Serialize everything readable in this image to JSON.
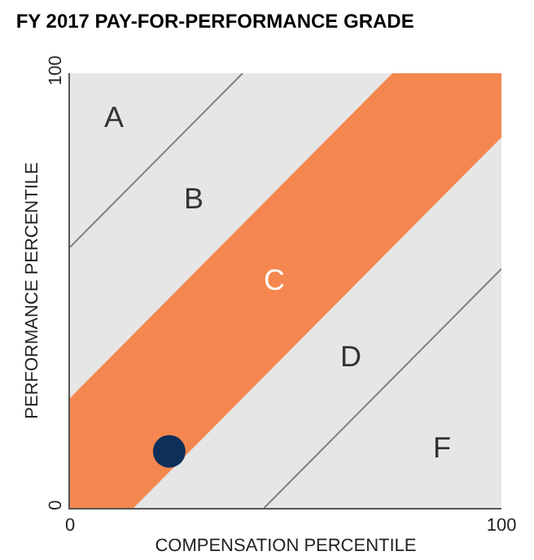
{
  "chart_data": {
    "type": "line",
    "title": "FY 2017 PAY-FOR-PERFORMANCE GRADE",
    "xlabel": "COMPENSATION PERCENTILE",
    "ylabel": "PERFORMANCE PERCENTILE",
    "xlim": [
      0,
      100
    ],
    "ylim": [
      0,
      100
    ],
    "xticks": [
      0,
      100
    ],
    "yticks": [
      0,
      100
    ],
    "series": [
      {
        "type": "area",
        "color": "#f4874f",
        "x": [
          0,
          75,
          100
        ],
        "values": [
          25,
          100,
          100
        ]
      },
      {
        "type": "area",
        "color": "#e6e6e6",
        "x": [
          15,
          100
        ],
        "values": [
          0,
          85
        ]
      },
      {
        "color": "#7f7f7f",
        "x": [
          0,
          40
        ],
        "values": [
          60,
          100
        ]
      },
      {
        "color": "#7f7f7f",
        "x": [
          45,
          100
        ],
        "values": [
          0,
          55
        ]
      },
      {
        "type": "scatter",
        "color": "#0d2f5a",
        "marker": "circle",
        "x": [
          23
        ],
        "values": [
          13
        ]
      }
    ],
    "annotations": [
      "A",
      "B",
      "C",
      "D",
      "F"
    ]
  }
}
